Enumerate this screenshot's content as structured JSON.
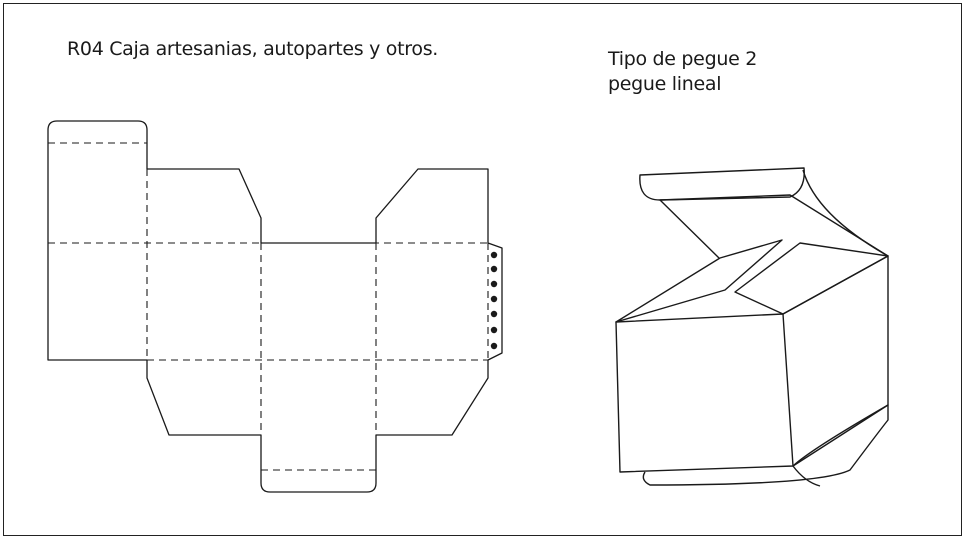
{
  "title": "R04 Caja artesanias, autopartes y otros.",
  "glue": {
    "type": "Tipo de pegue 2",
    "kind": "pegue lineal"
  },
  "colors": {
    "line": "#1a1a1a",
    "background": "#ffffff"
  }
}
